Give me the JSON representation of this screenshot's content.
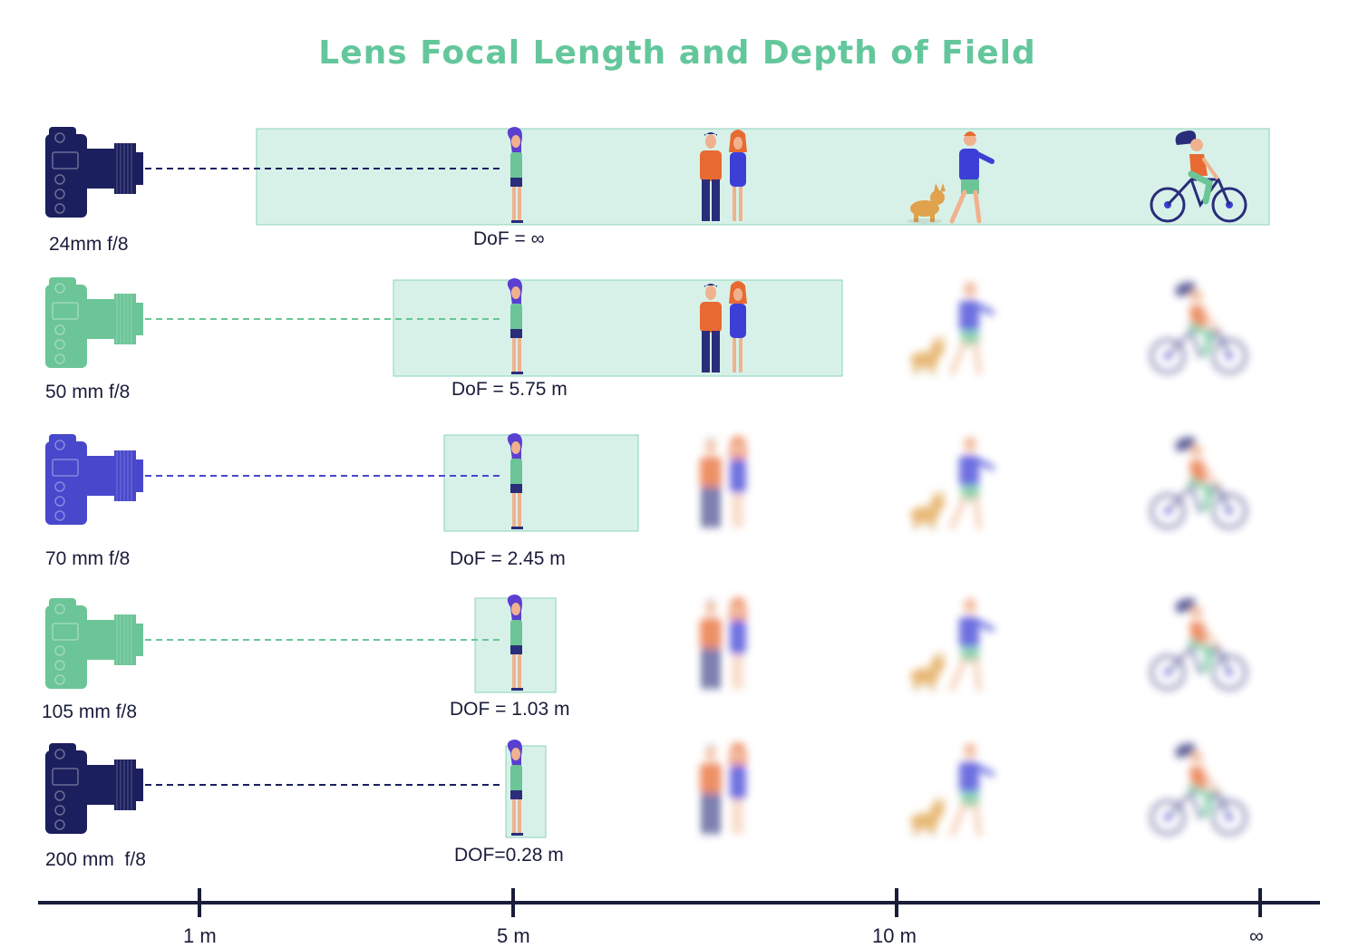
{
  "title": "Lens Focal Length and Depth of Field",
  "colors": {
    "title": "#63c79b",
    "dof_band": "#d7f1e9",
    "dof_edge": "#8bd3b8",
    "navy": "#1b1f5e",
    "green": "#6bc597",
    "blue": "#4848cc",
    "axis": "#1a1d3a",
    "skin": "#f0b28e",
    "hair": "#5a3fd0",
    "shirt_orange": "#e86a33",
    "pants_navy": "#2a2d7a",
    "dress_blue": "#3c3fd6",
    "corgi": "#e0a24c"
  },
  "rows": [
    {
      "camera_label": "24mm f/8",
      "camera_color": "navy",
      "dof_label": "DoF = ∞",
      "sharp": [
        "woman",
        "couple",
        "dog_walker",
        "cyclist"
      ]
    },
    {
      "camera_label": "50 mm f/8",
      "camera_color": "green",
      "dof_label": "DoF = 5.75 m",
      "sharp": [
        "woman",
        "couple"
      ]
    },
    {
      "camera_label": "70 mm f/8",
      "camera_color": "blue",
      "dof_label": "DoF = 2.45 m",
      "sharp": [
        "woman"
      ]
    },
    {
      "camera_label": "105 mm f/8",
      "camera_color": "green",
      "dof_label": "DOF = 1.03 m",
      "sharp": [
        "woman"
      ]
    },
    {
      "camera_label": "200 mm  f/8",
      "camera_color": "navy",
      "dof_label": "DOF=0.28 m",
      "sharp": [
        "woman"
      ]
    }
  ],
  "axis": {
    "ticks": [
      "1 m",
      "5 m",
      "10 m",
      "∞"
    ]
  },
  "icons": [
    "camera-icon",
    "woman-figure-icon",
    "couple-figure-icon",
    "dog-walker-figure-icon",
    "cyclist-figure-icon"
  ]
}
